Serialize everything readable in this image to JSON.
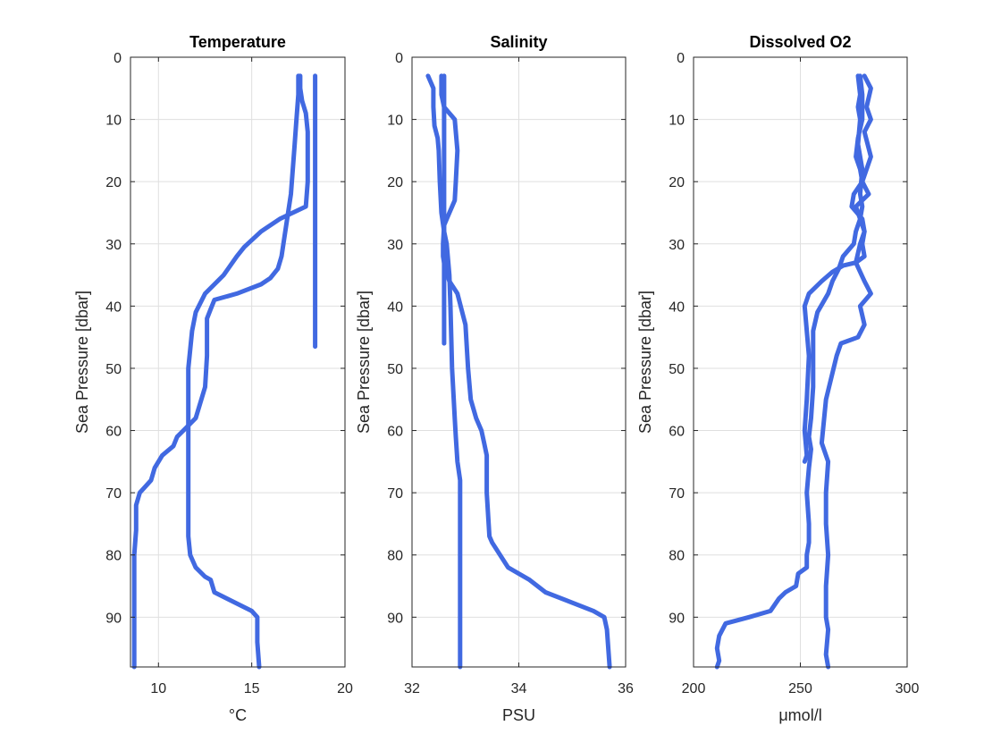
{
  "chart_data": [
    {
      "type": "line",
      "title": "Temperature",
      "xlabel": "°C",
      "ylabel": "Sea Pressure [dbar]",
      "xlim": [
        8.5,
        20
      ],
      "ylim": [
        0,
        98
      ],
      "y_reversed": true,
      "xticks": [
        10,
        15,
        20
      ],
      "yticks": [
        0,
        10,
        20,
        30,
        40,
        50,
        60,
        70,
        80,
        90
      ],
      "grid": true,
      "line_color": "#4169E1",
      "series": [
        {
          "x": [
            17.6,
            17.6,
            17.7,
            17.9,
            18.0,
            18.0,
            18.0,
            17.9,
            16.5,
            15.5,
            14.6,
            14.2,
            13.5,
            12.5,
            12.0,
            11.8,
            11.6,
            11.6,
            11.6,
            11.6,
            11.6,
            11.6,
            11.6,
            11.7,
            12.0,
            12.5,
            12.8,
            13.0,
            15.0,
            15.3,
            15.3,
            15.4
          ],
          "y": [
            3,
            5,
            7,
            9,
            12,
            16,
            20,
            24,
            26,
            28,
            30.5,
            32,
            35,
            38,
            41,
            44,
            50,
            55,
            60,
            64,
            68,
            72,
            77,
            80,
            82,
            83.5,
            84,
            86,
            89,
            90,
            94,
            98
          ]
        },
        {
          "x": [
            17.5,
            17.5,
            17.4,
            17.3,
            17.2,
            17.1,
            16.9,
            16.7,
            16.6,
            16.4,
            16.0,
            15.5,
            14.2,
            13.0,
            12.8,
            12.6,
            12.6,
            12.5,
            12.0,
            11.5,
            11.0,
            10.8,
            10.2,
            9.8,
            9.6,
            9.3,
            9.0,
            8.8,
            8.8,
            8.7,
            8.7,
            8.7,
            8.7
          ],
          "y": [
            3,
            6,
            10,
            14,
            18,
            22,
            26,
            30,
            32,
            34,
            35.5,
            36.5,
            38,
            39,
            40.5,
            42,
            48,
            53,
            58,
            59.5,
            61,
            62.5,
            64,
            66,
            68,
            69,
            70,
            72,
            76,
            80,
            85,
            90,
            98
          ]
        },
        {
          "x": [
            18.4,
            18.4,
            18.4,
            18.4
          ],
          "y": [
            3,
            20,
            40,
            46.5
          ]
        }
      ]
    },
    {
      "type": "line",
      "title": "Salinity",
      "xlabel": "PSU",
      "ylabel": "Sea Pressure [dbar]",
      "xlim": [
        32,
        36
      ],
      "ylim": [
        0,
        98
      ],
      "y_reversed": true,
      "xticks": [
        32,
        34,
        36
      ],
      "yticks": [
        0,
        10,
        20,
        30,
        40,
        50,
        60,
        70,
        80,
        90
      ],
      "grid": true,
      "line_color": "#4169E1",
      "series": [
        {
          "x": [
            32.3,
            32.4,
            32.4,
            32.42,
            32.48,
            32.5,
            32.52,
            32.55,
            32.6,
            32.65,
            32.7,
            32.72,
            32.75,
            32.8,
            32.82,
            32.85,
            32.9,
            32.9,
            32.9,
            32.9,
            32.9
          ],
          "y": [
            3,
            5,
            8,
            11,
            13,
            15,
            20,
            25,
            28,
            30,
            35,
            40,
            50,
            58,
            61,
            65,
            68,
            72,
            80,
            90,
            98
          ]
        },
        {
          "x": [
            32.55,
            32.55,
            32.6,
            32.7,
            32.8,
            32.85,
            32.82,
            32.8,
            32.7,
            32.6,
            32.58,
            32.58,
            32.62,
            32.7,
            32.85,
            33.0,
            33.05,
            33.1,
            33.2,
            33.3,
            33.35,
            33.4,
            33.4,
            33.45,
            33.5,
            33.8,
            34.2,
            34.5,
            35.4,
            35.6,
            35.65,
            35.7
          ],
          "y": [
            3,
            6,
            8,
            9,
            10,
            15,
            20,
            23,
            25,
            27,
            30,
            32,
            34,
            36,
            38,
            43,
            50,
            55,
            58,
            60,
            62,
            64,
            70,
            77,
            78,
            82,
            84,
            86,
            89,
            90,
            92,
            98
          ]
        },
        {
          "x": [
            32.6,
            32.6,
            32.6,
            32.6,
            32.6
          ],
          "y": [
            3,
            15,
            30,
            40,
            46
          ]
        }
      ]
    },
    {
      "type": "line",
      "title": "Dissolved O2",
      "xlabel": "μmol/l",
      "ylabel": "Sea Pressure [dbar]",
      "xlim": [
        200,
        300
      ],
      "ylim": [
        0,
        98
      ],
      "y_reversed": true,
      "xticks": [
        200,
        250,
        300
      ],
      "yticks": [
        0,
        10,
        20,
        30,
        40,
        50,
        60,
        70,
        80,
        90
      ],
      "grid": true,
      "line_color": "#4169E1",
      "series": [
        {
          "x": [
            280,
            283,
            281,
            283,
            280,
            283,
            279,
            282,
            276,
            278,
            280,
            278,
            276,
            280,
            283,
            278,
            280,
            277,
            269,
            267,
            262,
            260,
            263,
            262,
            262,
            263,
            262,
            262,
            263,
            262,
            263
          ],
          "y": [
            3,
            5,
            8,
            10,
            12,
            16,
            20,
            22,
            24,
            26,
            28,
            30,
            33,
            36,
            38,
            40,
            43,
            45,
            46,
            48,
            55,
            62,
            65,
            70,
            75,
            80,
            85,
            90,
            92,
            96,
            98
          ]
        },
        {
          "x": [
            277,
            278,
            277,
            278,
            277,
            279,
            278,
            279,
            278,
            276,
            275,
            270,
            268,
            265,
            263,
            258,
            256,
            256,
            256,
            255,
            254,
            255,
            254,
            253,
            254,
            254,
            253,
            253,
            253,
            249,
            248,
            243,
            240,
            236,
            226,
            215,
            212,
            211,
            212,
            211
          ],
          "y": [
            3,
            6,
            8,
            10,
            14,
            18,
            22,
            24,
            26,
            28,
            30,
            32,
            34,
            36,
            38,
            41,
            44,
            48,
            53,
            58,
            61,
            63,
            66,
            70,
            75,
            78,
            80,
            81,
            82,
            83,
            85,
            86,
            87,
            89,
            90,
            91,
            93,
            95,
            97,
            98
          ]
        },
        {
          "x": [
            278,
            279,
            279,
            277,
            276,
            278,
            279,
            275,
            274,
            279,
            280,
            279,
            280,
            276,
            270,
            265,
            260,
            254,
            252,
            254,
            253,
            252,
            253,
            252
          ],
          "y": [
            3,
            6,
            10,
            13,
            16,
            18,
            20,
            22,
            24,
            26,
            28,
            30,
            32,
            33,
            33.5,
            34.5,
            36,
            38,
            40,
            48,
            55,
            60,
            64,
            65
          ]
        }
      ]
    }
  ]
}
